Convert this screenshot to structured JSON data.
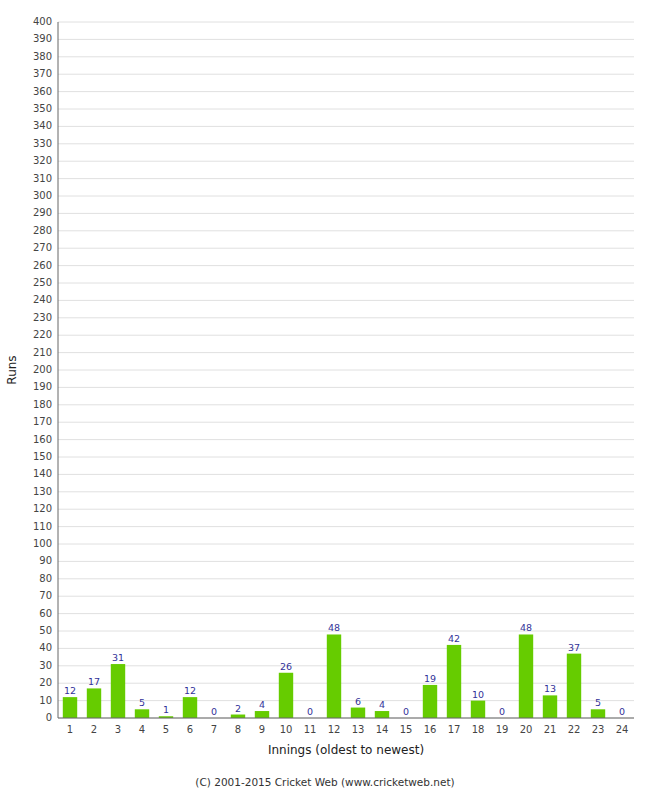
{
  "chart_data": {
    "type": "bar",
    "xlabel": "Innings (oldest to newest)",
    "ylabel": "Runs",
    "annotations": [
      "(C) 2001-2015 Cricket Web (www.cricketweb.net)"
    ],
    "categories": [
      "1",
      "2",
      "3",
      "4",
      "5",
      "6",
      "7",
      "8",
      "9",
      "10",
      "11",
      "12",
      "13",
      "14",
      "15",
      "16",
      "17",
      "18",
      "19",
      "20",
      "21",
      "22",
      "23",
      "24"
    ],
    "values": [
      12,
      17,
      31,
      5,
      1,
      12,
      0,
      2,
      4,
      26,
      0,
      48,
      6,
      4,
      0,
      19,
      42,
      10,
      0,
      48,
      13,
      37,
      5,
      0
    ],
    "color": "#66cc00",
    "ylim": [
      0,
      400
    ],
    "yticks": [
      0,
      10,
      20,
      30,
      40,
      50,
      60,
      70,
      80,
      90,
      100,
      110,
      120,
      130,
      140,
      150,
      160,
      170,
      180,
      190,
      200,
      210,
      220,
      230,
      240,
      250,
      260,
      270,
      280,
      290,
      300,
      310,
      320,
      330,
      340,
      350,
      360,
      370,
      380,
      390,
      400
    ],
    "grid": true,
    "data_labels": true
  }
}
